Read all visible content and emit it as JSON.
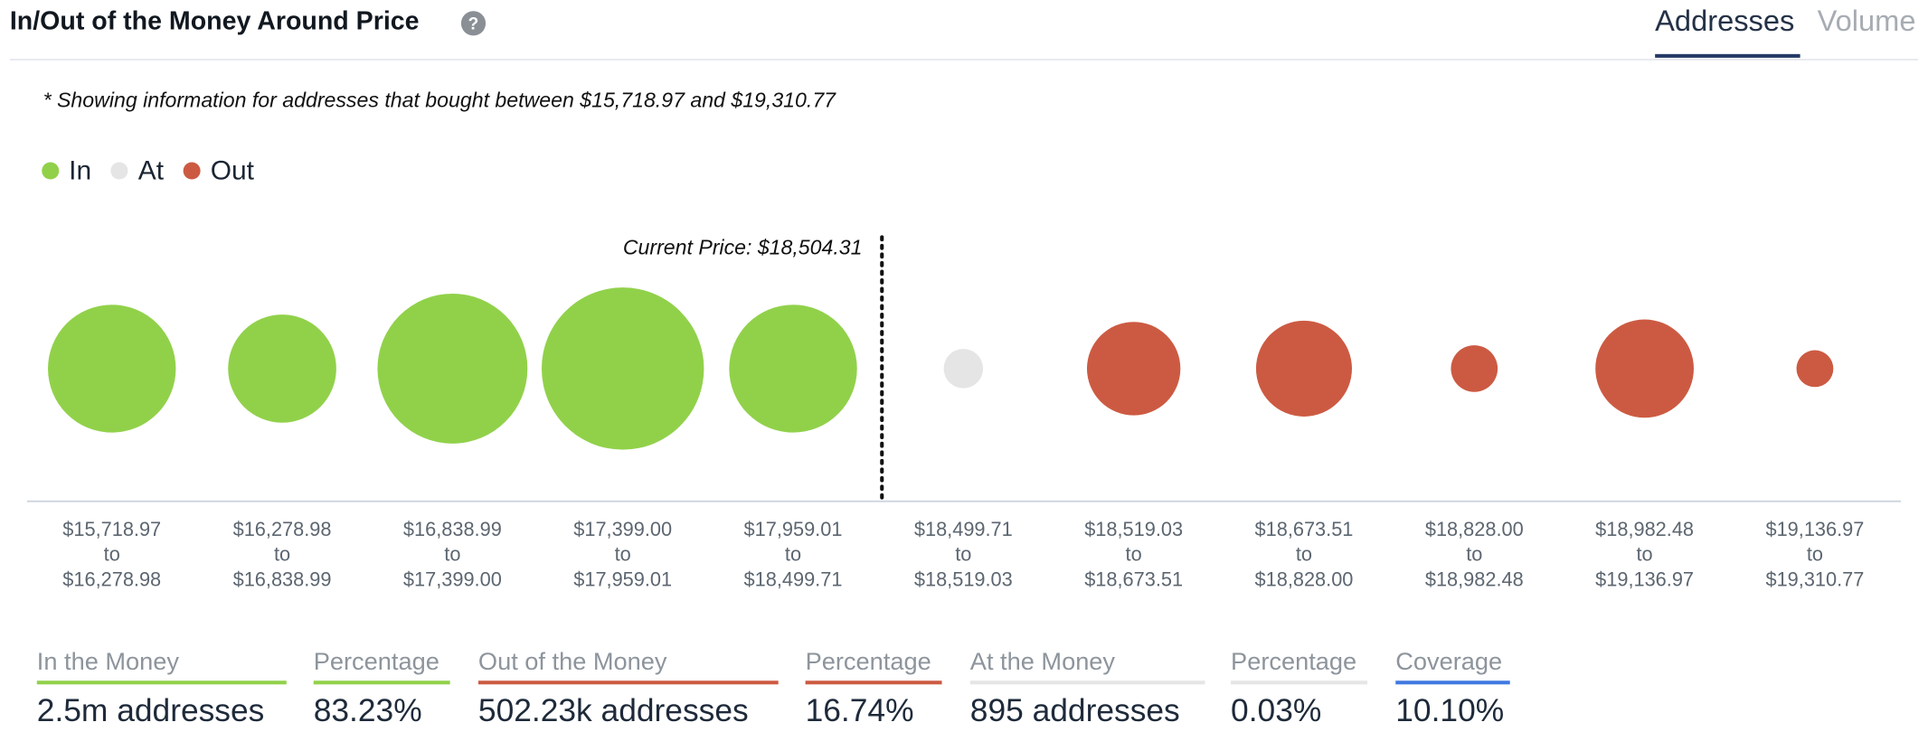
{
  "header": {
    "title": "In/Out of the Money Around Price",
    "tabs": [
      {
        "label": "Addresses",
        "active": true
      },
      {
        "label": "Volume",
        "active": false
      }
    ]
  },
  "note": "* Showing information for addresses that bought between $15,718.97 and $19,310.77",
  "legend": [
    {
      "label": "In",
      "color": "#91d14a"
    },
    {
      "label": "At",
      "color": "#e5e5e5"
    },
    {
      "label": "Out",
      "color": "#cc5a42"
    }
  ],
  "chart_data": {
    "type": "bubble",
    "current_price_label": "Current Price: $18,504.31",
    "current_price_after_index": 4,
    "categories": [
      {
        "from": "$15,718.97",
        "to": "$16,278.98",
        "status": "In"
      },
      {
        "from": "$16,278.98",
        "to": "$16,838.99",
        "status": "In"
      },
      {
        "from": "$16,838.99",
        "to": "$17,399.00",
        "status": "In"
      },
      {
        "from": "$17,399.00",
        "to": "$17,959.01",
        "status": "In"
      },
      {
        "from": "$17,959.01",
        "to": "$18,499.71",
        "status": "In"
      },
      {
        "from": "$18,499.71",
        "to": "$18,519.03",
        "status": "At"
      },
      {
        "from": "$18,519.03",
        "to": "$18,673.51",
        "status": "Out"
      },
      {
        "from": "$18,673.51",
        "to": "$18,828.00",
        "status": "Out"
      },
      {
        "from": "$18,828.00",
        "to": "$18,982.48",
        "status": "Out"
      },
      {
        "from": "$18,982.48",
        "to": "$19,136.97",
        "status": "Out"
      },
      {
        "from": "$19,136.97",
        "to": "$19,310.77",
        "status": "Out"
      }
    ],
    "range_connector": "to",
    "relative_size": [
      52,
      44,
      61,
      66,
      52,
      16,
      38,
      39,
      19,
      40,
      15
    ],
    "colors": {
      "In": "#91d14a",
      "At": "#e5e5e5",
      "Out": "#cc5a42"
    }
  },
  "stats": [
    {
      "label": "In the Money",
      "value": "2.5m addresses",
      "color": "#91d14a"
    },
    {
      "label": "Percentage",
      "value": "83.23%",
      "color": "#91d14a"
    },
    {
      "label": "Out of the Money",
      "value": "502.23k addresses",
      "color": "#cc5a42"
    },
    {
      "label": "Percentage",
      "value": "16.74%",
      "color": "#cc5a42"
    },
    {
      "label": "At the Money",
      "value": "895 addresses",
      "color": "#e5e5e5"
    },
    {
      "label": "Percentage",
      "value": "0.03%",
      "color": "#e5e5e5"
    },
    {
      "label": "Coverage",
      "value": "10.10%",
      "color": "#3f78e0"
    }
  ]
}
